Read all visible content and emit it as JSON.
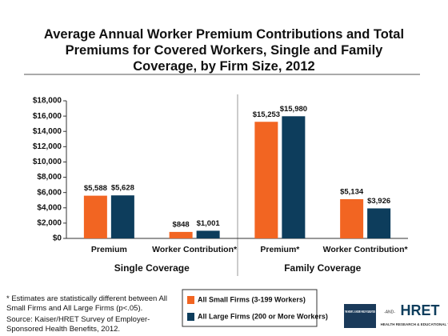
{
  "chart_data": {
    "type": "bar",
    "title": "Average Annual Worker Premium Contributions and Total Premiums for Covered Workers, Single and Family Coverage, by Firm Size, 2012",
    "categories": [
      "Premium",
      "Worker Contribution*",
      "Premium*",
      "Worker Contribution*"
    ],
    "groups": [
      "Single Coverage",
      "Family Coverage"
    ],
    "series": [
      {
        "name": "All Small Firms (3-199 Workers)",
        "color": "#f26522",
        "values": [
          5588,
          848,
          15253,
          5134
        ],
        "value_labels": [
          "$5,588",
          "$848",
          "$15,253",
          "$5,134"
        ]
      },
      {
        "name": "All Large Firms (200 or More Workers)",
        "color": "#0d3d5c",
        "values": [
          5628,
          1001,
          15980,
          3926
        ],
        "value_labels": [
          "$5,628",
          "$1,001",
          "$15,980",
          "$3,926"
        ]
      }
    ],
    "ylim": [
      0,
      18000
    ],
    "yticks": [
      {
        "value": 0,
        "label": "$0"
      },
      {
        "value": 2000,
        "label": "$2,000"
      },
      {
        "value": 4000,
        "label": "$4,000"
      },
      {
        "value": 6000,
        "label": "$6,000"
      },
      {
        "value": 8000,
        "label": "$8,000"
      },
      {
        "value": 10000,
        "label": "$10,000"
      },
      {
        "value": 12000,
        "label": "$12,000"
      },
      {
        "value": 14000,
        "label": "$14,000"
      },
      {
        "value": 16000,
        "label": "$16,000"
      },
      {
        "value": 18000,
        "label": "$18,000"
      }
    ],
    "footnote": "* Estimates are statistically different between All Small Firms and All Large Firms (p<.05).",
    "source": "Source: Kaiser/HRET Survey of Employer-Sponsored Health Benefits, 2012.",
    "logos": [
      "THE HENRY J. KAISER FAMILY FOUNDATION",
      "-AND-",
      "HRET",
      "HEALTH RESEARCH & EDUCATIONAL TRUST"
    ]
  }
}
